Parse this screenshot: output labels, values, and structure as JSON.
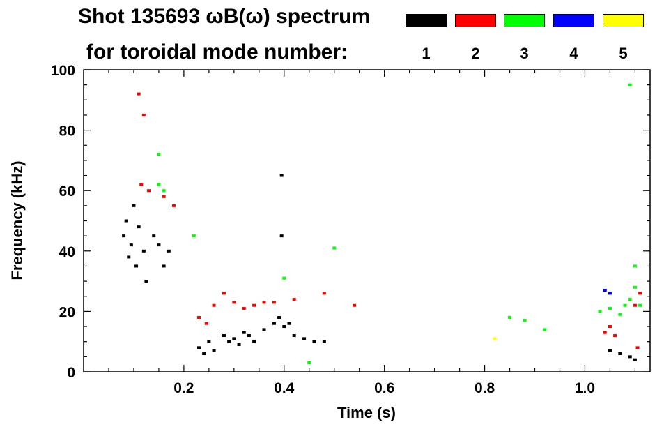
{
  "chart_data": {
    "type": "scatter",
    "title": "Shot 135693 ωB(ω) spectrum",
    "subtitle": "for toroidal mode number:",
    "xlabel": "Time (s)",
    "ylabel": "Frequency (kHz)",
    "xlim": [
      0.0,
      1.13
    ],
    "ylim": [
      0,
      100
    ],
    "x_ticks": [
      0.2,
      0.4,
      0.6,
      0.8,
      1.0
    ],
    "x_tick_labels": [
      "0.2",
      "0.4",
      "0.6",
      "0.8",
      "1.0"
    ],
    "y_ticks": [
      0,
      20,
      40,
      60,
      80,
      100
    ],
    "y_tick_labels": [
      "0",
      "20",
      "40",
      "60",
      "80",
      "100"
    ],
    "grid": false,
    "legend_placement": "top-right",
    "series": [
      {
        "name": "1",
        "color": "#000000",
        "points": [
          [
            0.08,
            45
          ],
          [
            0.085,
            50
          ],
          [
            0.09,
            38
          ],
          [
            0.095,
            42
          ],
          [
            0.1,
            55
          ],
          [
            0.105,
            35
          ],
          [
            0.11,
            48
          ],
          [
            0.12,
            40
          ],
          [
            0.125,
            30
          ],
          [
            0.14,
            45
          ],
          [
            0.15,
            42
          ],
          [
            0.16,
            35
          ],
          [
            0.17,
            40
          ],
          [
            0.23,
            8
          ],
          [
            0.24,
            6
          ],
          [
            0.25,
            10
          ],
          [
            0.26,
            7
          ],
          [
            0.28,
            12
          ],
          [
            0.29,
            10
          ],
          [
            0.3,
            11
          ],
          [
            0.31,
            9
          ],
          [
            0.32,
            13
          ],
          [
            0.33,
            12
          ],
          [
            0.34,
            10
          ],
          [
            0.36,
            14
          ],
          [
            0.38,
            16
          ],
          [
            0.39,
            18
          ],
          [
            0.4,
            15
          ],
          [
            0.41,
            16
          ],
          [
            0.42,
            12
          ],
          [
            0.44,
            11
          ],
          [
            0.46,
            10
          ],
          [
            0.48,
            10
          ],
          [
            0.395,
            65
          ],
          [
            0.395,
            45
          ],
          [
            1.05,
            7
          ],
          [
            1.07,
            6
          ],
          [
            1.09,
            5
          ],
          [
            1.1,
            4
          ]
        ]
      },
      {
        "name": "2",
        "color": "#ff0000",
        "points": [
          [
            0.11,
            92
          ],
          [
            0.12,
            85
          ],
          [
            0.115,
            62
          ],
          [
            0.13,
            60
          ],
          [
            0.16,
            58
          ],
          [
            0.18,
            55
          ],
          [
            0.23,
            18
          ],
          [
            0.245,
            16
          ],
          [
            0.26,
            22
          ],
          [
            0.28,
            26
          ],
          [
            0.3,
            23
          ],
          [
            0.32,
            21
          ],
          [
            0.34,
            22
          ],
          [
            0.36,
            23
          ],
          [
            0.38,
            23
          ],
          [
            0.42,
            24
          ],
          [
            0.48,
            26
          ],
          [
            0.54,
            22
          ],
          [
            1.04,
            13
          ],
          [
            1.05,
            15
          ],
          [
            1.06,
            12
          ],
          [
            1.1,
            22
          ],
          [
            1.11,
            26
          ],
          [
            1.105,
            8
          ]
        ]
      },
      {
        "name": "3",
        "color": "#00ff00",
        "points": [
          [
            0.15,
            62
          ],
          [
            0.16,
            60
          ],
          [
            0.15,
            72
          ],
          [
            0.22,
            45
          ],
          [
            0.4,
            31
          ],
          [
            0.5,
            41
          ],
          [
            0.45,
            3
          ],
          [
            0.85,
            18
          ],
          [
            0.88,
            17
          ],
          [
            0.92,
            14
          ],
          [
            1.03,
            20
          ],
          [
            1.05,
            21
          ],
          [
            1.07,
            19
          ],
          [
            1.08,
            22
          ],
          [
            1.09,
            24
          ],
          [
            1.1,
            28
          ],
          [
            1.11,
            22
          ],
          [
            1.1,
            35
          ],
          [
            1.09,
            95
          ]
        ]
      },
      {
        "name": "4",
        "color": "#0000ff",
        "points": [
          [
            1.04,
            27
          ],
          [
            1.05,
            26
          ]
        ]
      },
      {
        "name": "5",
        "color": "#ffff00",
        "points": [
          [
            0.82,
            11
          ]
        ]
      }
    ]
  },
  "legend": {
    "items": [
      {
        "label": "1",
        "color": "#000000"
      },
      {
        "label": "2",
        "color": "#ff0000"
      },
      {
        "label": "3",
        "color": "#00ff00"
      },
      {
        "label": "4",
        "color": "#0000ff"
      },
      {
        "label": "5",
        "color": "#ffff00"
      }
    ]
  }
}
